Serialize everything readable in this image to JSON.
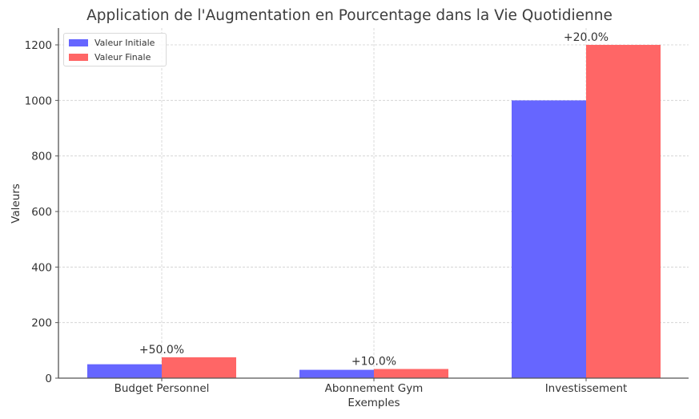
{
  "chart_data": {
    "type": "bar",
    "title": "Application de l'Augmentation en Pourcentage dans la Vie Quotidienne",
    "xlabel": "Exemples",
    "ylabel": "Valeurs",
    "categories": [
      "Budget Personnel",
      "Abonnement Gym",
      "Investissement"
    ],
    "series": [
      {
        "name": "Valeur Initiale",
        "values": [
          50,
          30,
          1000
        ],
        "color": "#6666ff"
      },
      {
        "name": "Valeur Finale",
        "values": [
          75,
          33,
          1200
        ],
        "color": "#ff6666"
      }
    ],
    "annotations": [
      "+50.0%",
      "+10.0%",
      "+20.0%"
    ],
    "yticks": [
      0,
      200,
      400,
      600,
      800,
      1000,
      1200
    ],
    "ylim": [
      0,
      1260
    ],
    "grid": true,
    "legend_position": "upper left"
  }
}
